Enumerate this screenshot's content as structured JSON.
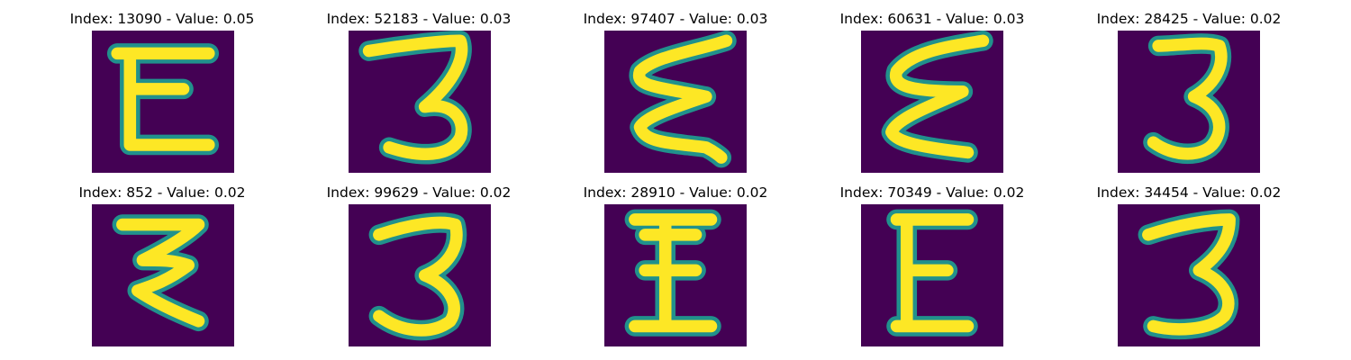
{
  "colors": {
    "background": "#440154",
    "halo": "#21918c",
    "stroke": "#fde725"
  },
  "panels": [
    {
      "title": "Index: 13090 - Value: 0.05",
      "glyph": "E-like digit"
    },
    {
      "title": "Index: 52183 - Value: 0.03",
      "glyph": "3-like digit"
    },
    {
      "title": "Index: 97407 - Value: 0.03",
      "glyph": "zigzag digit"
    },
    {
      "title": "Index: 60631 - Value: 0.03",
      "glyph": "zigzag digit"
    },
    {
      "title": "Index: 28425 - Value: 0.02",
      "glyph": "3-like digit"
    },
    {
      "title": "Index: 852 - Value: 0.02",
      "glyph": "zigzag digit"
    },
    {
      "title": "Index: 99629 - Value: 0.02",
      "glyph": "3-like digit"
    },
    {
      "title": "Index: 28910 - Value: 0.02",
      "glyph": "E-like digit"
    },
    {
      "title": "Index: 70349 - Value: 0.02",
      "glyph": "E-like digit"
    },
    {
      "title": "Index: 34454 - Value: 0.02",
      "glyph": "3-like digit"
    }
  ]
}
